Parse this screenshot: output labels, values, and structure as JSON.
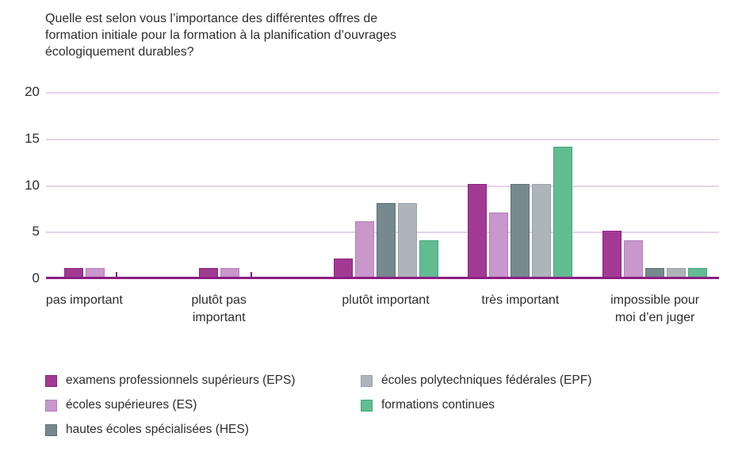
{
  "chart_data": {
    "type": "bar",
    "title": "Quelle est selon vous l’importance des différentes offres de formation initiale pour la formation à la planification d’ouvrages écologiquement durables?",
    "title_lines": [
      "Quelle est selon vous l’importance des différentes offres de",
      "formation initiale pour la formation à la planification d’ouvrages",
      "écologiquement durables?"
    ],
    "categories": [
      "pas important",
      "plutôt pas important",
      "plutôt important",
      "très important",
      "impossible pour moi d’en juger"
    ],
    "category_lines": [
      [
        "pas important"
      ],
      [
        "plutôt pas",
        "important"
      ],
      [
        "plutôt important"
      ],
      [
        "très important"
      ],
      [
        "impossible pour",
        "moi d’en juger"
      ]
    ],
    "series": [
      {
        "name": "examens professionnels supérieurs (EPS)",
        "short": "eps",
        "color": "#a23a94",
        "border": "#8c2380",
        "values": [
          1,
          1,
          2,
          10,
          5
        ]
      },
      {
        "name": "écoles supérieures (ES)",
        "short": "es",
        "color": "#c997cb",
        "border": "#b77fba",
        "values": [
          1,
          1,
          6,
          7,
          4
        ]
      },
      {
        "name": "hautes écoles spécialisées (HES)",
        "short": "hes",
        "color": "#75898f",
        "border": "#5e7279",
        "values": [
          0,
          0,
          8,
          10,
          1
        ]
      },
      {
        "name": "écoles polytechniques fédérales (EPF)",
        "short": "epf",
        "color": "#adb5ba",
        "border": "#99a3a9",
        "values": [
          0,
          0,
          8,
          10,
          1
        ]
      },
      {
        "name": "formations continues",
        "short": "fc",
        "color": "#62bc92",
        "border": "#43a87c",
        "values": [
          0,
          0,
          4,
          14,
          1
        ]
      }
    ],
    "y_ticks": [
      0,
      5,
      10,
      15,
      20
    ],
    "ylim": [
      0,
      20
    ],
    "grid": true,
    "legend_position": "bottom-left-two-columns",
    "colors": {
      "axis": "#8c1d82",
      "grid": "#e6d3e8",
      "text": "#2d2d2d",
      "background": "#ffffff"
    }
  }
}
